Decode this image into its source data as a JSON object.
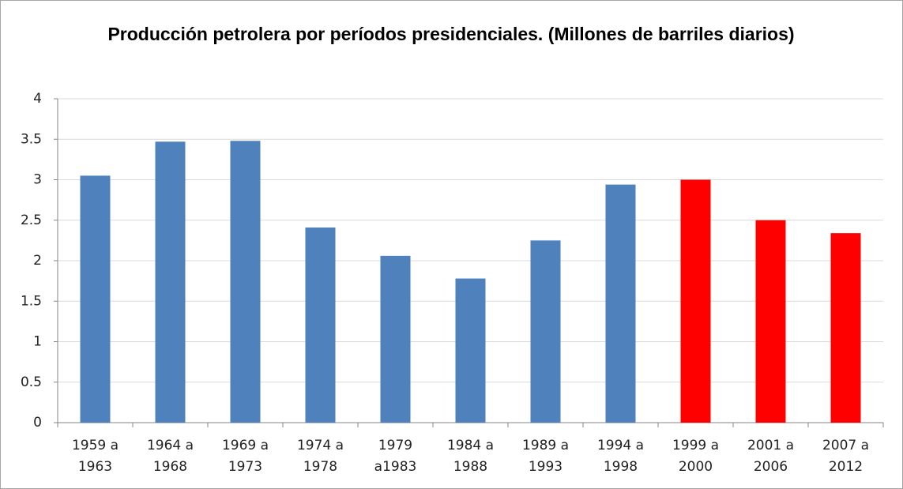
{
  "chart_data": {
    "type": "bar",
    "title": "Producción petrolera por períodos presidenciales. (Millones de barriles diarios)",
    "categories": [
      [
        "1959 a",
        "1963"
      ],
      [
        "1964 a",
        "1968"
      ],
      [
        "1969 a",
        "1973"
      ],
      [
        "1974 a",
        "1978"
      ],
      [
        "1979",
        "a1983"
      ],
      [
        "1984 a",
        "1988"
      ],
      [
        "1989 a",
        "1993"
      ],
      [
        "1994 a",
        "1998"
      ],
      [
        "1999 a",
        "2000"
      ],
      [
        "2001 a",
        "2006"
      ],
      [
        "2007 a",
        "2012"
      ]
    ],
    "values": [
      3.05,
      3.47,
      3.48,
      2.41,
      2.06,
      1.78,
      2.25,
      2.94,
      3.0,
      2.5,
      2.34
    ],
    "colors": [
      "#4f81bd",
      "#4f81bd",
      "#4f81bd",
      "#4f81bd",
      "#4f81bd",
      "#4f81bd",
      "#4f81bd",
      "#4f81bd",
      "#ff0000",
      "#ff0000",
      "#ff0000"
    ],
    "ylim": [
      0,
      4
    ],
    "yticks": [
      0,
      0.5,
      1,
      1.5,
      2,
      2.5,
      3,
      3.5,
      4
    ],
    "grid": true
  }
}
